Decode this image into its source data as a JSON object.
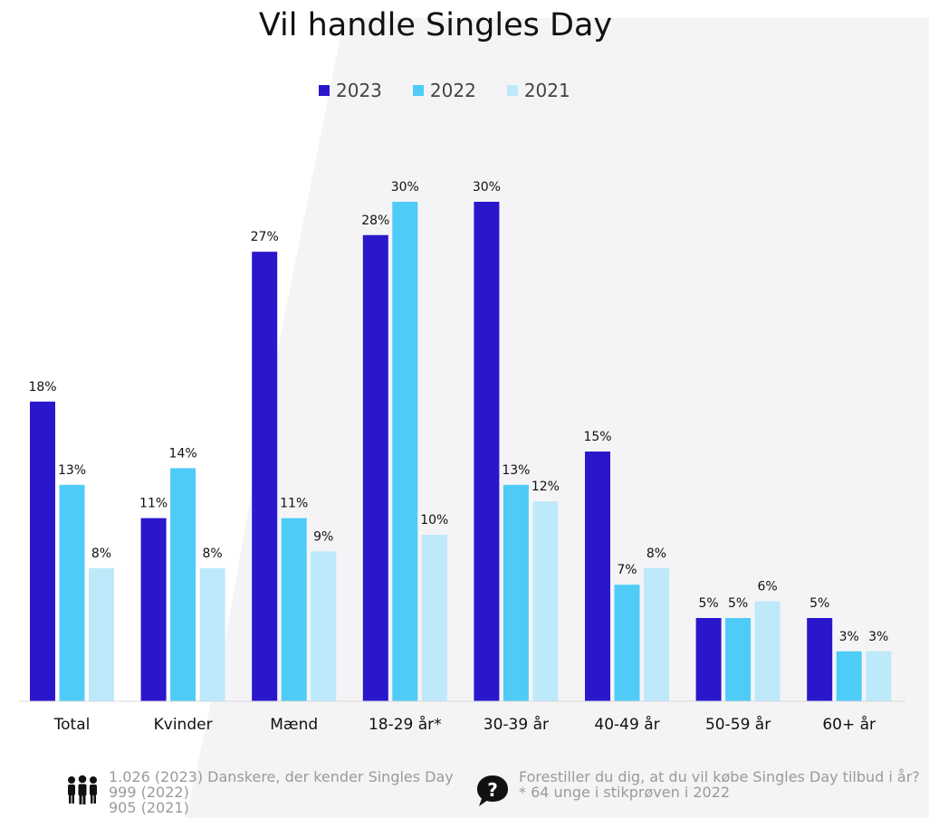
{
  "chart_data": {
    "type": "bar",
    "title": "Vil handle Singles Day",
    "categories": [
      "Total",
      "Kvinder",
      "Mænd",
      "18-29 år*",
      "30-39 år",
      "40-49 år",
      "50-59 år",
      "60+ år"
    ],
    "series": [
      {
        "name": "2023",
        "color": "#2a17cc",
        "values": [
          18,
          11,
          27,
          28,
          30,
          15,
          5,
          5
        ]
      },
      {
        "name": "2022",
        "color": "#4fcbf8",
        "values": [
          13,
          14,
          11,
          30,
          13,
          7,
          5,
          3
        ]
      },
      {
        "name": "2021",
        "color": "#bde9fb",
        "values": [
          8,
          8,
          9,
          10,
          12,
          8,
          6,
          3
        ]
      }
    ],
    "value_suffix": "%",
    "ylim": [
      0,
      30
    ],
    "grid": false,
    "legend_position": "top-center"
  },
  "footer": {
    "left_lines": [
      "1.026 (2023) Danskere, der kender Singles Day",
      "999 (2022)",
      "905 (2021)"
    ],
    "left_icon": "people-icon",
    "right_lines": [
      "Forestiller du dig, at du vil købe Singles Day tilbud i år?",
      "* 64 unge i stikprøven i 2022"
    ],
    "right_icon": "question-bubble-icon"
  }
}
